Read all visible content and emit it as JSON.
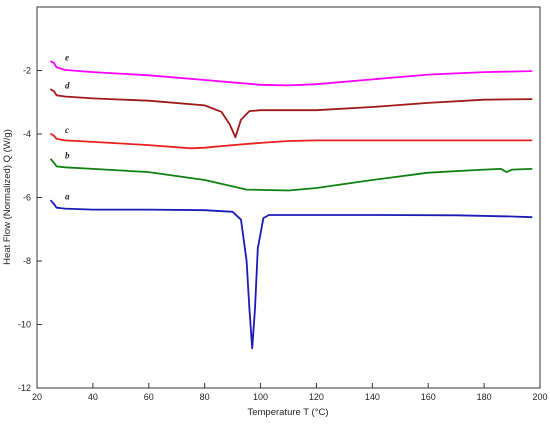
{
  "chart_data": {
    "type": "line",
    "title": "",
    "xlabel": "Temperature  T (°C)",
    "ylabel": "Heat Flow (Normalized)  Q  (W/g)",
    "xlim": [
      20,
      200
    ],
    "ylim": [
      -12,
      0
    ],
    "xticks": [
      "20",
      "40",
      "60",
      "80",
      "100",
      "120",
      "140",
      "160",
      "180",
      "200"
    ],
    "yticks": [
      "-2",
      "-4",
      "-6",
      "-8",
      "-10",
      "-12"
    ],
    "grid": false,
    "legend": "none",
    "series": [
      {
        "name": "e",
        "color": "#ff00ff",
        "x": [
          25,
          26,
          27,
          30,
          40,
          60,
          80,
          100,
          110,
          120,
          140,
          160,
          180,
          197
        ],
        "y": [
          -1.72,
          -1.76,
          -1.9,
          -1.98,
          -2.05,
          -2.15,
          -2.3,
          -2.45,
          -2.47,
          -2.43,
          -2.28,
          -2.13,
          -2.05,
          -2.02
        ]
      },
      {
        "name": "d",
        "color": "#a01818",
        "x": [
          25,
          26,
          27,
          30,
          40,
          60,
          80,
          86,
          89,
          91,
          93,
          96,
          100,
          120,
          140,
          160,
          180,
          197
        ],
        "y": [
          -2.6,
          -2.65,
          -2.78,
          -2.82,
          -2.88,
          -2.95,
          -3.1,
          -3.3,
          -3.7,
          -4.1,
          -3.55,
          -3.28,
          -3.25,
          -3.25,
          -3.15,
          -3.02,
          -2.92,
          -2.9
        ]
      },
      {
        "name": "c",
        "color": "#e82020",
        "x": [
          25,
          26,
          27,
          30,
          40,
          60,
          75,
          80,
          90,
          100,
          110,
          120,
          140,
          160,
          180,
          197
        ],
        "y": [
          -4.0,
          -4.05,
          -4.15,
          -4.2,
          -4.25,
          -4.35,
          -4.45,
          -4.43,
          -4.35,
          -4.28,
          -4.22,
          -4.2,
          -4.2,
          -4.2,
          -4.2,
          -4.2
        ]
      },
      {
        "name": "b",
        "color": "#108010",
        "x": [
          25,
          26,
          27,
          30,
          40,
          60,
          80,
          90,
          95,
          110,
          120,
          140,
          160,
          180,
          186,
          188,
          190,
          197
        ],
        "y": [
          -4.8,
          -4.9,
          -5.02,
          -5.05,
          -5.1,
          -5.2,
          -5.45,
          -5.65,
          -5.75,
          -5.78,
          -5.7,
          -5.45,
          -5.22,
          -5.12,
          -5.1,
          -5.2,
          -5.12,
          -5.1
        ]
      },
      {
        "name": "a",
        "color": "#1a1ab8",
        "x": [
          25,
          26,
          27,
          30,
          40,
          60,
          80,
          90,
          93,
          95,
          96,
          97,
          98,
          99,
          101,
          103,
          110,
          140,
          170,
          190,
          197
        ],
        "y": [
          -6.1,
          -6.2,
          -6.32,
          -6.35,
          -6.38,
          -6.38,
          -6.4,
          -6.45,
          -6.7,
          -8.0,
          -9.5,
          -10.75,
          -9.5,
          -7.6,
          -6.65,
          -6.55,
          -6.55,
          -6.55,
          -6.56,
          -6.6,
          -6.62
        ]
      }
    ]
  }
}
